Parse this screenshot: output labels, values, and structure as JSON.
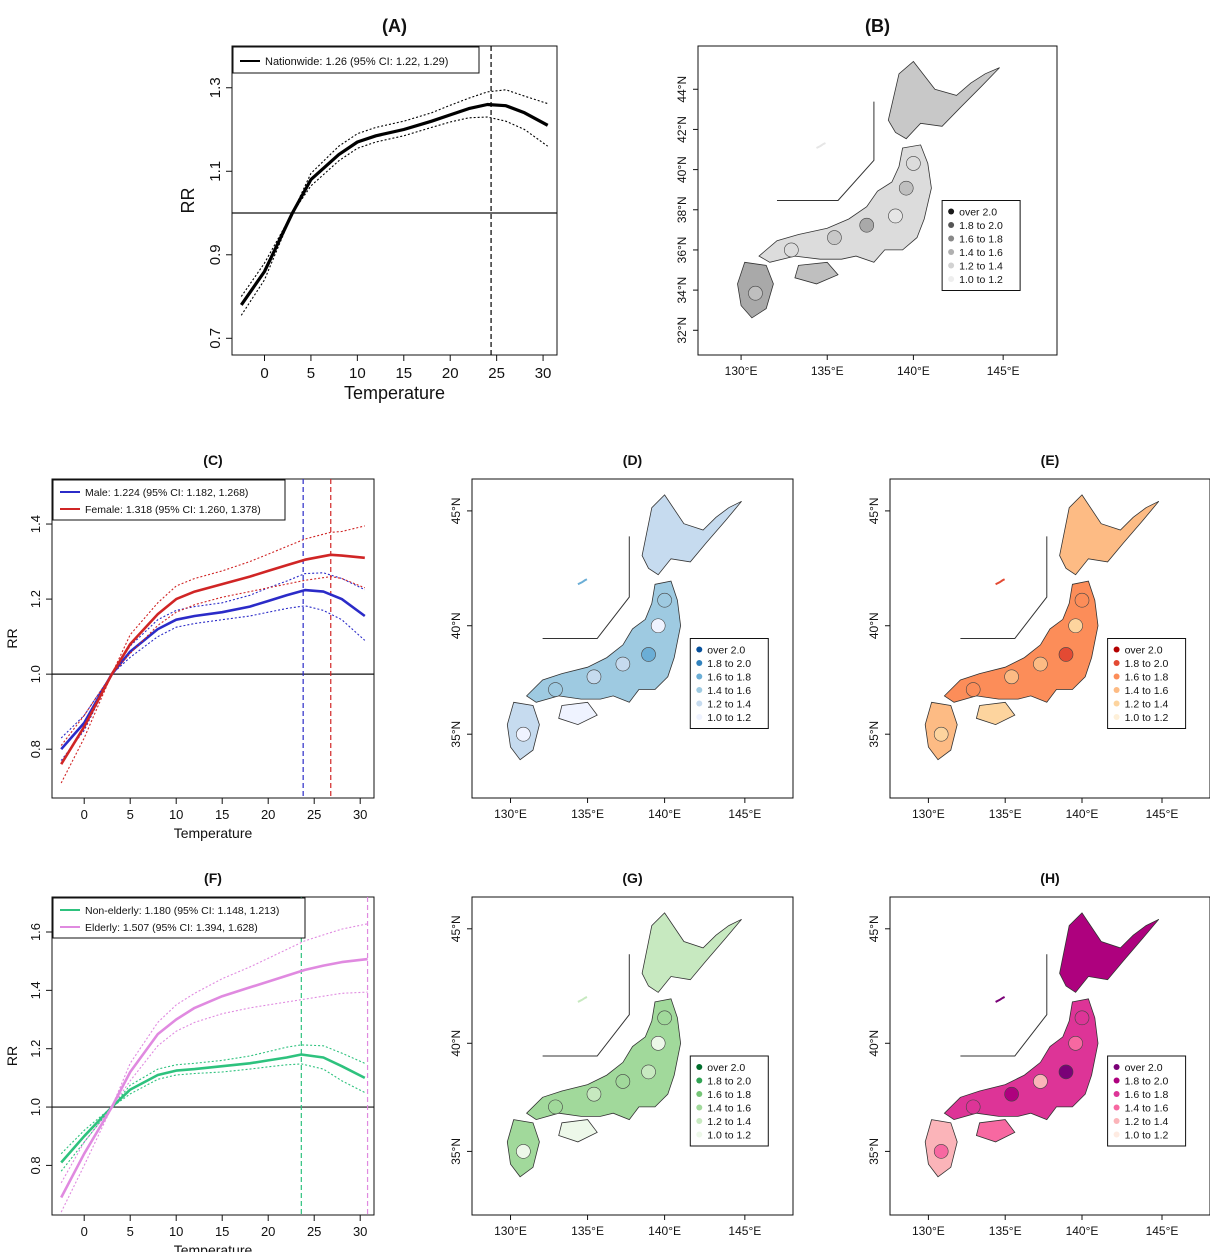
{
  "chart_data": [
    {
      "id": "A",
      "type": "line",
      "title": "(A)",
      "xlabel": "Temperature",
      "ylabel": "RR",
      "xlim": [
        -3.5,
        31.5
      ],
      "ylim": [
        0.66,
        1.4
      ],
      "xticks": [
        0,
        5,
        10,
        15,
        20,
        25,
        30
      ],
      "yticks": [
        0.7,
        0.9,
        1.1,
        1.3
      ],
      "ytick_labels": [
        "0.7",
        "0.9",
        "1.1",
        "1.3"
      ],
      "legend": {
        "position": "top-left",
        "entries": [
          "Nationwide: 1.26 (95% CI: 1.22, 1.29)"
        ]
      },
      "reference_line": 1.0,
      "vlines": [
        {
          "x": 24.4,
          "color": "#000000"
        }
      ],
      "series": [
        {
          "name": "Nationwide: 1.26 (95% CI: 1.22, 1.29)",
          "color": "#000000",
          "width": 3.2,
          "x": [
            -2.5,
            0,
            3,
            5,
            8,
            10,
            12,
            15,
            18,
            20,
            22,
            24,
            26,
            28,
            30.5
          ],
          "y": [
            0.78,
            0.86,
            1.0,
            1.08,
            1.14,
            1.17,
            1.185,
            1.2,
            1.22,
            1.235,
            1.25,
            1.26,
            1.257,
            1.24,
            1.21
          ],
          "lower": [
            0.755,
            0.84,
            1.0,
            1.065,
            1.125,
            1.155,
            1.17,
            1.185,
            1.205,
            1.218,
            1.228,
            1.23,
            1.22,
            1.2,
            1.16
          ],
          "upper": [
            0.8,
            0.88,
            1.0,
            1.095,
            1.16,
            1.19,
            1.205,
            1.22,
            1.24,
            1.258,
            1.275,
            1.29,
            1.295,
            1.28,
            1.262
          ]
        }
      ]
    },
    {
      "id": "C",
      "type": "line",
      "title": "(C)",
      "xlabel": "Temperature",
      "ylabel": "RR",
      "xlim": [
        -3.5,
        31.5
      ],
      "ylim": [
        0.67,
        1.52
      ],
      "xticks": [
        0,
        5,
        10,
        15,
        20,
        25,
        30
      ],
      "yticks": [
        0.8,
        1.0,
        1.2,
        1.4
      ],
      "ytick_labels": [
        "0.8",
        "1.0",
        "1.2",
        "1.4"
      ],
      "legend": {
        "position": "top-left",
        "entries": [
          "Male: 1.224 (95% CI: 1.182, 1.268)",
          "Female: 1.318 (95% CI: 1.260, 1.378)"
        ]
      },
      "reference_line": 1.0,
      "vlines": [
        {
          "x": 23.8,
          "color": "#2b2bc8"
        },
        {
          "x": 26.8,
          "color": "#d02525"
        }
      ],
      "series": [
        {
          "name": "Male: 1.224 (95% CI: 1.182, 1.268)",
          "color": "#2b2bc8",
          "width": 2.6,
          "x": [
            -2.5,
            0,
            3,
            5,
            8,
            10,
            12,
            15,
            18,
            20,
            22,
            24,
            26,
            28,
            30.5
          ],
          "y": [
            0.8,
            0.87,
            1.0,
            1.06,
            1.12,
            1.145,
            1.155,
            1.165,
            1.18,
            1.195,
            1.21,
            1.224,
            1.22,
            1.2,
            1.155
          ],
          "lower": [
            0.77,
            0.85,
            1.0,
            1.045,
            1.1,
            1.125,
            1.135,
            1.145,
            1.155,
            1.165,
            1.175,
            1.182,
            1.17,
            1.145,
            1.09
          ],
          "upper": [
            0.83,
            0.89,
            1.0,
            1.075,
            1.145,
            1.17,
            1.18,
            1.19,
            1.21,
            1.23,
            1.248,
            1.268,
            1.27,
            1.255,
            1.225
          ]
        },
        {
          "name": "Female: 1.318 (95% CI: 1.260, 1.378)",
          "color": "#d02525",
          "width": 2.6,
          "x": [
            -2.5,
            0,
            3,
            5,
            8,
            10,
            12,
            15,
            18,
            20,
            22,
            24,
            26.8,
            28,
            30.5
          ],
          "y": [
            0.76,
            0.86,
            1.0,
            1.08,
            1.16,
            1.2,
            1.22,
            1.24,
            1.26,
            1.275,
            1.29,
            1.305,
            1.318,
            1.316,
            1.31
          ],
          "lower": [
            0.71,
            0.83,
            1.0,
            1.055,
            1.13,
            1.165,
            1.185,
            1.205,
            1.22,
            1.23,
            1.24,
            1.25,
            1.26,
            1.255,
            1.23
          ],
          "upper": [
            0.81,
            0.89,
            1.0,
            1.105,
            1.19,
            1.235,
            1.255,
            1.275,
            1.3,
            1.32,
            1.34,
            1.36,
            1.378,
            1.38,
            1.395
          ]
        }
      ]
    },
    {
      "id": "F",
      "type": "line",
      "title": "(F)",
      "xlabel": "Temperature",
      "ylabel": "RR",
      "xlim": [
        -3.5,
        31.5
      ],
      "ylim": [
        0.63,
        1.72
      ],
      "xticks": [
        0,
        5,
        10,
        15,
        20,
        25,
        30
      ],
      "yticks": [
        0.8,
        1.0,
        1.2,
        1.4,
        1.6
      ],
      "ytick_labels": [
        "0.8",
        "1.0",
        "1.2",
        "1.4",
        "1.6"
      ],
      "legend": {
        "position": "top-left",
        "entries": [
          "Non-elderly: 1.180 (95% CI: 1.148, 1.213)",
          "Elderly: 1.507 (95% CI: 1.394, 1.628)"
        ]
      },
      "reference_line": 1.0,
      "vlines": [
        {
          "x": 23.6,
          "color": "#2ec27e"
        },
        {
          "x": 30.8,
          "color": "#e08ae0"
        }
      ],
      "series": [
        {
          "name": "Non-elderly: 1.180 (95% CI: 1.148, 1.213)",
          "color": "#2ec27e",
          "width": 2.6,
          "x": [
            -2.5,
            0,
            3,
            5,
            8,
            10,
            12,
            15,
            18,
            20,
            22,
            23.6,
            26,
            28,
            30.5
          ],
          "y": [
            0.81,
            0.9,
            1.0,
            1.06,
            1.11,
            1.125,
            1.13,
            1.14,
            1.15,
            1.16,
            1.17,
            1.18,
            1.17,
            1.14,
            1.1
          ],
          "lower": [
            0.78,
            0.88,
            1.0,
            1.045,
            1.095,
            1.11,
            1.115,
            1.12,
            1.13,
            1.138,
            1.145,
            1.148,
            1.13,
            1.09,
            1.05
          ],
          "upper": [
            0.84,
            0.92,
            1.0,
            1.075,
            1.13,
            1.145,
            1.15,
            1.16,
            1.175,
            1.19,
            1.205,
            1.213,
            1.21,
            1.185,
            1.15
          ]
        },
        {
          "name": "Elderly: 1.507 (95% CI: 1.394, 1.628)",
          "color": "#e08ae0",
          "width": 2.6,
          "x": [
            -2.5,
            0,
            3,
            5,
            8,
            10,
            12,
            15,
            18,
            20,
            22,
            24,
            26,
            28,
            30.8
          ],
          "y": [
            0.69,
            0.84,
            1.0,
            1.12,
            1.25,
            1.3,
            1.34,
            1.38,
            1.41,
            1.43,
            1.45,
            1.47,
            1.485,
            1.497,
            1.507
          ],
          "lower": [
            0.64,
            0.8,
            1.0,
            1.09,
            1.21,
            1.26,
            1.29,
            1.32,
            1.34,
            1.35,
            1.36,
            1.37,
            1.38,
            1.39,
            1.394
          ],
          "upper": [
            0.74,
            0.88,
            1.0,
            1.15,
            1.29,
            1.35,
            1.39,
            1.44,
            1.48,
            1.51,
            1.54,
            1.57,
            1.59,
            1.61,
            1.628
          ]
        }
      ]
    }
  ],
  "maps": [
    {
      "id": "B",
      "title": "(B)",
      "xticks": [
        "130°E",
        "135°E",
        "140°E",
        "145°E"
      ],
      "yticks": [
        "32°N",
        "34°N",
        "36°N",
        "38°N",
        "40°N",
        "42°N",
        "44°N"
      ],
      "legend": [
        "over 2.0",
        "1.8 to 2.0",
        "1.6 to 1.8",
        "1.4 to 1.6",
        "1.2 to 1.4",
        "1.0 to 1.2"
      ],
      "palette": [
        "#1a1a1a",
        "#555555",
        "#888888",
        "#b0b0b0",
        "#d2d2d2",
        "#eeeeee"
      ],
      "dominant": [
        "#c8c8c8",
        "#dcdcdc",
        "#bfbfbf",
        "#e6e6e6",
        "#a9a9a9"
      ]
    },
    {
      "id": "D",
      "title": "(D)",
      "xticks": [
        "130°E",
        "135°E",
        "140°E",
        "145°E"
      ],
      "yticks": [
        "35°N",
        "40°N",
        "45°N"
      ],
      "legend": [
        "over 2.0",
        "1.8 to 2.0",
        "1.6 to 1.8",
        "1.4 to 1.6",
        "1.2 to 1.4",
        "1.0 to 1.2"
      ],
      "palette": [
        "#08519c",
        "#3182bd",
        "#6baed6",
        "#9ecae1",
        "#c6dbef",
        "#eff3ff"
      ],
      "dominant": [
        "#c6dbef",
        "#9ecae1",
        "#eff3ff",
        "#6baed6",
        "#c6dbef"
      ]
    },
    {
      "id": "E",
      "title": "(E)",
      "xticks": [
        "130°E",
        "135°E",
        "140°E",
        "145°E"
      ],
      "yticks": [
        "35°N",
        "40°N",
        "45°N"
      ],
      "legend": [
        "over 2.0",
        "1.8 to 2.0",
        "1.6 to 1.8",
        "1.4 to 1.6",
        "1.2 to 1.4",
        "1.0 to 1.2"
      ],
      "palette": [
        "#b30000",
        "#e34a33",
        "#fc8d59",
        "#fdbb84",
        "#fdd49e",
        "#fef0d9"
      ],
      "dominant": [
        "#fdbb84",
        "#fc8d59",
        "#fdd49e",
        "#e34a33",
        "#fdbb84"
      ]
    },
    {
      "id": "G",
      "title": "(G)",
      "xticks": [
        "130°E",
        "135°E",
        "140°E",
        "145°E"
      ],
      "yticks": [
        "35°N",
        "40°N",
        "45°N"
      ],
      "legend": [
        "over 2.0",
        "1.8 to 2.0",
        "1.6 to 1.8",
        "1.4 to 1.6",
        "1.2 to 1.4",
        "1.0 to 1.2"
      ],
      "palette": [
        "#006d2c",
        "#31a354",
        "#74c476",
        "#a1d99b",
        "#c7e9c0",
        "#edf8e9"
      ],
      "dominant": [
        "#c7e9c0",
        "#a1d99b",
        "#edf8e9",
        "#c7e9c0",
        "#a1d99b"
      ]
    },
    {
      "id": "H",
      "title": "(H)",
      "xticks": [
        "130°E",
        "135°E",
        "140°E",
        "145°E"
      ],
      "yticks": [
        "35°N",
        "40°N",
        "45°N"
      ],
      "legend": [
        "over 2.0",
        "1.8 to 2.0",
        "1.6 to 1.8",
        "1.4 to 1.6",
        "1.2 to 1.4",
        "1.0 to 1.2"
      ],
      "palette": [
        "#7a0177",
        "#ae017e",
        "#dd3497",
        "#f768a1",
        "#fbb4b9",
        "#feebe2"
      ],
      "dominant": [
        "#ae017e",
        "#dd3497",
        "#f768a1",
        "#7a0177",
        "#fbb4b9"
      ]
    }
  ]
}
